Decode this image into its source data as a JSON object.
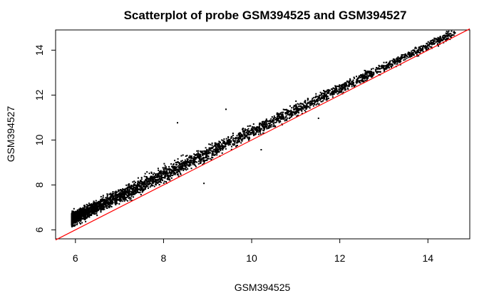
{
  "chart_data": {
    "type": "scatter",
    "title": "Scatterplot of probe GSM394525 and GSM394527",
    "xlabel": "GSM394525",
    "ylabel": "GSM394527",
    "xlim": [
      5.55,
      14.95
    ],
    "ylim": [
      5.6,
      14.9
    ],
    "x_ticks": [
      6,
      8,
      10,
      12,
      14
    ],
    "y_ticks": [
      6,
      8,
      10,
      12,
      14
    ],
    "grid": false,
    "legend": "none",
    "reference_line": {
      "slope": 1,
      "intercept": 0,
      "color": "#ff0000"
    },
    "point_color": "#000000",
    "point_cloud": {
      "x_range": [
        5.9,
        14.6
      ],
      "approx_trend": "y ≈ x + 0.6 for x < 8, converging to y ≈ x + 0.2 near x = 14",
      "sample_points": [
        [
          5.95,
          6.2
        ],
        [
          6.0,
          6.5
        ],
        [
          6.1,
          6.3
        ],
        [
          6.2,
          6.8
        ],
        [
          6.3,
          6.6
        ],
        [
          6.4,
          7.0
        ],
        [
          6.5,
          6.9
        ],
        [
          6.6,
          7.3
        ],
        [
          6.7,
          7.1
        ],
        [
          6.8,
          7.5
        ],
        [
          6.9,
          7.2
        ],
        [
          7.0,
          7.7
        ],
        [
          7.1,
          7.4
        ],
        [
          7.2,
          7.9
        ],
        [
          7.3,
          7.6
        ],
        [
          7.4,
          8.1
        ],
        [
          7.5,
          7.8
        ],
        [
          7.6,
          8.3
        ],
        [
          7.7,
          8.0
        ],
        [
          7.8,
          8.5
        ],
        [
          7.9,
          8.2
        ],
        [
          8.0,
          8.6
        ],
        [
          8.1,
          8.4
        ],
        [
          8.2,
          8.8
        ],
        [
          8.3,
          8.6
        ],
        [
          8.4,
          9.0
        ],
        [
          8.5,
          8.7
        ],
        [
          8.6,
          9.1
        ],
        [
          8.7,
          8.9
        ],
        [
          8.8,
          9.3
        ],
        [
          8.9,
          9.0
        ],
        [
          9.0,
          9.5
        ],
        [
          9.2,
          9.6
        ],
        [
          9.4,
          9.9
        ],
        [
          9.6,
          10.1
        ],
        [
          9.8,
          10.3
        ],
        [
          10.0,
          10.5
        ],
        [
          10.2,
          10.7
        ],
        [
          10.4,
          10.9
        ],
        [
          10.6,
          11.0
        ],
        [
          10.8,
          11.2
        ],
        [
          11.0,
          11.4
        ],
        [
          11.3,
          11.7
        ],
        [
          11.6,
          12.0
        ],
        [
          11.9,
          12.3
        ],
        [
          12.2,
          12.6
        ],
        [
          12.5,
          12.8
        ],
        [
          12.8,
          13.1
        ],
        [
          13.1,
          13.4
        ],
        [
          13.5,
          13.8
        ],
        [
          13.9,
          14.2
        ],
        [
          14.3,
          14.5
        ],
        [
          14.6,
          14.8
        ],
        [
          8.3,
          10.8
        ],
        [
          9.4,
          11.4
        ],
        [
          11.5,
          11.0
        ],
        [
          8.9,
          8.1
        ],
        [
          10.2,
          9.6
        ]
      ]
    }
  }
}
